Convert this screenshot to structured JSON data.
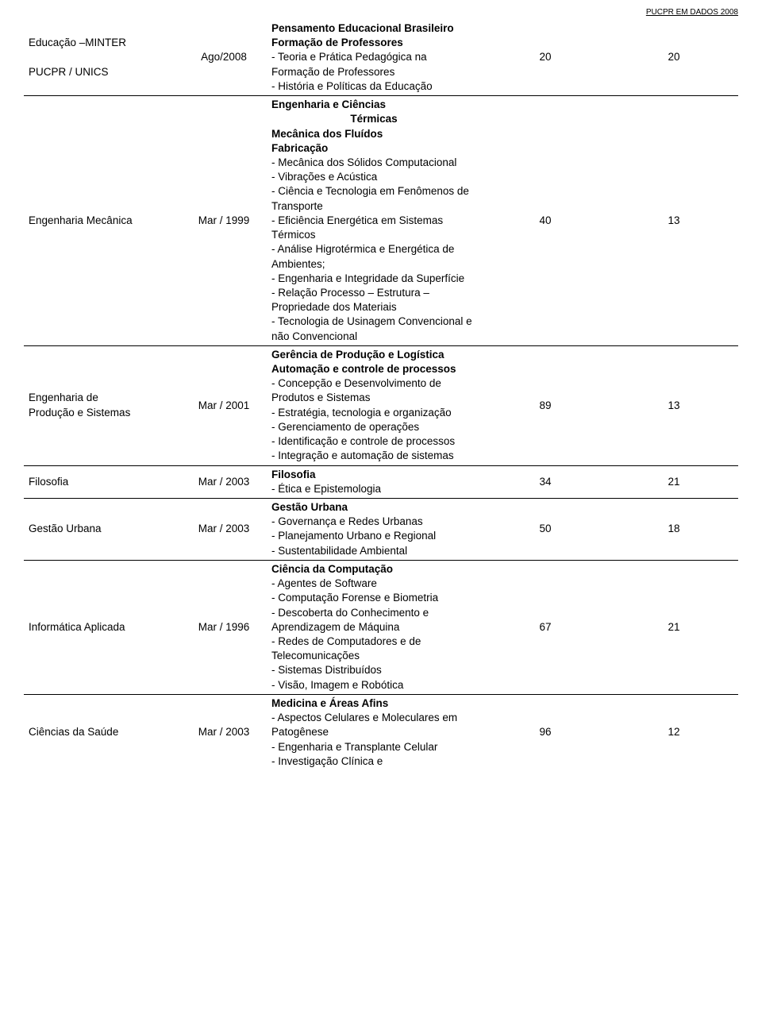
{
  "header": {
    "right_label": "PUCPR EM DADOS 2008"
  },
  "colors": {
    "text": "#000000",
    "background": "#ffffff",
    "divider": "#000000"
  },
  "fonts": {
    "body_size_pt": 10,
    "header_size_pt": 7
  },
  "rows": [
    {
      "name_lines": [
        "Educação –MINTER",
        "",
        "PUCPR / UNICS"
      ],
      "date": "Ago/2008",
      "num1": "20",
      "num2": "20",
      "desc": [
        {
          "text": "Pensamento Educacional Brasileiro",
          "bold": true
        },
        {
          "text": "Formação de Professores",
          "bold": true
        },
        {
          "text": "- Teoria e Prática Pedagógica na Formação de Professores",
          "bold": false
        },
        {
          "text": "- História e Políticas da Educação",
          "bold": false
        }
      ]
    },
    {
      "name_lines": [
        "Engenharia Mecânica"
      ],
      "date": "Mar / 1999",
      "num1": "40",
      "num2": "13",
      "desc": [
        {
          "text": "Engenharia e Ciências",
          "bold": true
        },
        {
          "text": "Térmicas",
          "bold": true,
          "center": true
        },
        {
          "text": "Mecânica dos Fluídos",
          "bold": true
        },
        {
          "text": "Fabricação",
          "bold": true
        },
        {
          "text": "- Mecânica dos Sólidos Computacional",
          "bold": false
        },
        {
          "text": "- Vibrações e Acústica",
          "bold": false
        },
        {
          "text": "- Ciência e Tecnologia em Fenômenos de Transporte",
          "bold": false
        },
        {
          "text": "- Eficiência Energética em Sistemas Térmicos",
          "bold": false
        },
        {
          "text": "- Análise Higrotérmica e Energética de Ambientes;",
          "bold": false
        },
        {
          "text": "- Engenharia e Integridade da Superfície",
          "bold": false
        },
        {
          "text": "- Relação Processo – Estrutura – Propriedade dos Materiais",
          "bold": false
        },
        {
          "text": "- Tecnologia de Usinagem Convencional e não Convencional",
          "bold": false
        }
      ]
    },
    {
      "name_lines": [
        "Engenharia de",
        "Produção e Sistemas"
      ],
      "date": "Mar / 2001",
      "num1": "89",
      "num2": "13",
      "desc": [
        {
          "text": "Gerência de Produção e Logística",
          "bold": true
        },
        {
          "text": "Automação e controle de processos",
          "bold": true
        },
        {
          "text": "- Concepção e Desenvolvimento de Produtos e Sistemas",
          "bold": false
        },
        {
          "text": "- Estratégia, tecnologia e organização",
          "bold": false
        },
        {
          "text": "- Gerenciamento de operações",
          "bold": false
        },
        {
          "text": "- Identificação e controle de processos",
          "bold": false
        },
        {
          "text": "- Integração e automação de sistemas",
          "bold": false
        }
      ]
    },
    {
      "name_lines": [
        "Filosofia"
      ],
      "date": "Mar / 2003",
      "num1": "34",
      "num2": "21",
      "desc": [
        {
          "text": "Filosofia",
          "bold": true
        },
        {
          "text": "- Ética e Epistemologia",
          "bold": false
        }
      ]
    },
    {
      "name_lines": [
        "Gestão Urbana"
      ],
      "date": "Mar / 2003",
      "num1": "50",
      "num2": "18",
      "desc": [
        {
          "text": "Gestão Urbana",
          "bold": true
        },
        {
          "text": "- Governança e Redes Urbanas",
          "bold": false
        },
        {
          "text": "- Planejamento Urbano e Regional",
          "bold": false
        },
        {
          "text": "- Sustentabilidade Ambiental",
          "bold": false
        }
      ]
    },
    {
      "name_lines": [
        "Informática Aplicada"
      ],
      "date": "Mar / 1996",
      "num1": "67",
      "num2": "21",
      "desc": [
        {
          "text": "Ciência da Computação",
          "bold": true
        },
        {
          "text": "- Agentes de Software",
          "bold": false
        },
        {
          "text": "- Computação Forense e Biometria",
          "bold": false
        },
        {
          "text": "- Descoberta do Conhecimento e Aprendizagem de Máquina",
          "bold": false
        },
        {
          "text": "- Redes de Computadores e de Telecomunicações",
          "bold": false
        },
        {
          "text": "- Sistemas Distribuídos",
          "bold": false
        },
        {
          "text": "- Visão, Imagem e Robótica",
          "bold": false
        }
      ]
    },
    {
      "name_lines": [
        "Ciências da Saúde"
      ],
      "date": "Mar / 2003",
      "num1": "96",
      "num2": "12",
      "no_divider": true,
      "desc": [
        {
          "text": "Medicina e Áreas Afins",
          "bold": true
        },
        {
          "text": "- Aspectos Celulares e Moleculares em Patogênese",
          "bold": false
        },
        {
          "text": "- Engenharia e Transplante Celular",
          "bold": false
        },
        {
          "text": "- Investigação Clínica e",
          "bold": false
        }
      ]
    }
  ]
}
